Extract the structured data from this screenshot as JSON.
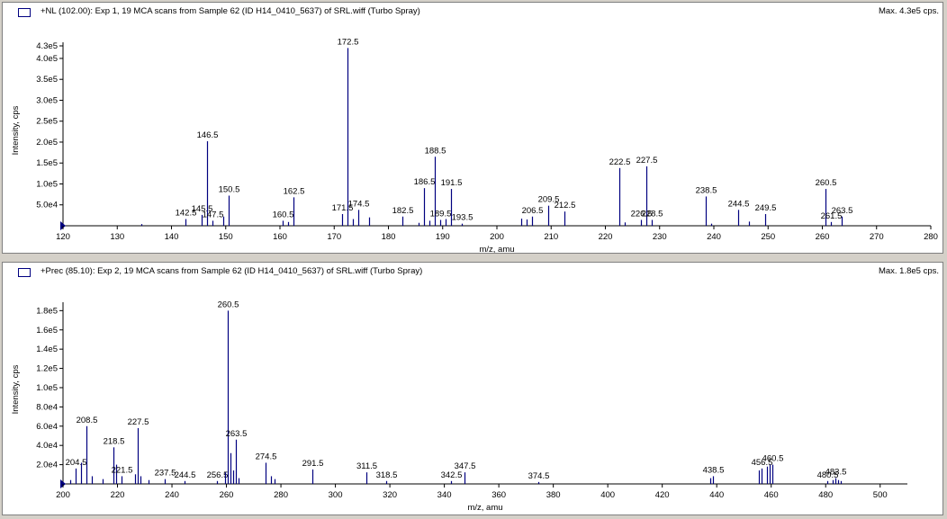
{
  "colors": {
    "series": "#000080",
    "axis": "#000000",
    "background": "#ffffff",
    "frame": "#d4d0c8"
  },
  "panels": [
    {
      "header": "+NL (102.00): Exp 1, 19 MCA scans from Sample 62 (ID H14_0410_5637) of SRL.wiff (Turbo Spray)",
      "max_label": "Max. 4.3e5 cps."
    },
    {
      "header": "+Prec (85.10): Exp 2, 19 MCA scans from Sample 62 (ID H14_0410_5637) of SRL.wiff (Turbo Spray)",
      "max_label": "Max. 1.8e5 cps."
    }
  ],
  "chart_data": [
    {
      "type": "bar",
      "xlabel": "m/z, amu",
      "ylabel": "Intensity, cps",
      "xlim": [
        120,
        280
      ],
      "ylim": [
        0,
        430000
      ],
      "x_ticks": [
        120,
        130,
        140,
        150,
        160,
        170,
        180,
        190,
        200,
        210,
        220,
        230,
        240,
        250,
        260,
        270,
        280
      ],
      "y_ticks": [
        {
          "value": 50000,
          "label": "5.0e4"
        },
        {
          "value": 100000,
          "label": "1.0e5"
        },
        {
          "value": 150000,
          "label": "1.5e5"
        },
        {
          "value": 200000,
          "label": "2.0e5"
        },
        {
          "value": 250000,
          "label": "2.5e5"
        },
        {
          "value": 300000,
          "label": "3.0e5"
        },
        {
          "value": 350000,
          "label": "3.5e5"
        },
        {
          "value": 400000,
          "label": "4.0e5"
        },
        {
          "value": 430000,
          "label": "4.3e5"
        }
      ],
      "peaks": [
        {
          "x": 134.5,
          "y": 4000
        },
        {
          "x": 142.5,
          "y": 16000,
          "label": "142.5"
        },
        {
          "x": 145.5,
          "y": 26000,
          "label": "145.5"
        },
        {
          "x": 146.5,
          "y": 202000,
          "label": "146.5"
        },
        {
          "x": 147.5,
          "y": 12000,
          "label": "147.5"
        },
        {
          "x": 149.5,
          "y": 22000
        },
        {
          "x": 150.5,
          "y": 72000,
          "label": "150.5"
        },
        {
          "x": 160.5,
          "y": 12000,
          "label": "160.5"
        },
        {
          "x": 161.5,
          "y": 9000
        },
        {
          "x": 162.5,
          "y": 68000,
          "label": "162.5"
        },
        {
          "x": 171.5,
          "y": 28000,
          "label": "171.5"
        },
        {
          "x": 172.5,
          "y": 425000,
          "label": "172.5"
        },
        {
          "x": 173.5,
          "y": 16000
        },
        {
          "x": 174.5,
          "y": 38000,
          "label": "174.5"
        },
        {
          "x": 176.5,
          "y": 20000
        },
        {
          "x": 182.5,
          "y": 22000,
          "label": "182.5"
        },
        {
          "x": 185.5,
          "y": 7000
        },
        {
          "x": 186.5,
          "y": 90000,
          "label": "186.5"
        },
        {
          "x": 187.5,
          "y": 12000
        },
        {
          "x": 188.5,
          "y": 165000,
          "label": "188.5"
        },
        {
          "x": 189.5,
          "y": 14000,
          "label": "189.5"
        },
        {
          "x": 190.5,
          "y": 16000
        },
        {
          "x": 191.5,
          "y": 88000,
          "label": "191.5"
        },
        {
          "x": 193.5,
          "y": 5000,
          "label": "193.5"
        },
        {
          "x": 204.5,
          "y": 17000
        },
        {
          "x": 205.5,
          "y": 15000
        },
        {
          "x": 206.5,
          "y": 22000,
          "label": "206.5"
        },
        {
          "x": 209.5,
          "y": 48000,
          "label": "209.5"
        },
        {
          "x": 212.5,
          "y": 34000,
          "label": "212.5"
        },
        {
          "x": 222.5,
          "y": 138000,
          "label": "222.5"
        },
        {
          "x": 223.5,
          "y": 8000
        },
        {
          "x": 226.5,
          "y": 14000,
          "label": "226.5"
        },
        {
          "x": 227.5,
          "y": 142000,
          "label": "227.5"
        },
        {
          "x": 228.5,
          "y": 14000,
          "label": "228.5"
        },
        {
          "x": 238.5,
          "y": 70000,
          "label": "238.5"
        },
        {
          "x": 239.5,
          "y": 5000
        },
        {
          "x": 244.5,
          "y": 38000,
          "label": "244.5"
        },
        {
          "x": 246.5,
          "y": 10000
        },
        {
          "x": 249.5,
          "y": 28000,
          "label": "249.5"
        },
        {
          "x": 260.5,
          "y": 88000,
          "label": "260.5"
        },
        {
          "x": 261.5,
          "y": 9000,
          "label": "261.5"
        },
        {
          "x": 263.5,
          "y": 22000,
          "label": "263.5"
        }
      ]
    },
    {
      "type": "bar",
      "xlabel": "m/z, amu",
      "ylabel": "Intensity, cps",
      "xlim": [
        200,
        510
      ],
      "ylim": [
        0,
        185000
      ],
      "x_ticks": [
        200,
        220,
        240,
        260,
        280,
        300,
        320,
        340,
        360,
        380,
        400,
        420,
        440,
        460,
        480,
        500
      ],
      "y_ticks": [
        {
          "value": 20000,
          "label": "2.0e4"
        },
        {
          "value": 40000,
          "label": "4.0e4"
        },
        {
          "value": 60000,
          "label": "6.0e4"
        },
        {
          "value": 80000,
          "label": "8.0e4"
        },
        {
          "value": 100000,
          "label": "1.0e5"
        },
        {
          "value": 120000,
          "label": "1.2e5"
        },
        {
          "value": 140000,
          "label": "1.4e5"
        },
        {
          "value": 160000,
          "label": "1.6e5"
        },
        {
          "value": 180000,
          "label": "1.8e5"
        }
      ],
      "peaks": [
        {
          "x": 202.5,
          "y": 4000
        },
        {
          "x": 204.5,
          "y": 16000,
          "label": "204.5"
        },
        {
          "x": 206.5,
          "y": 22000
        },
        {
          "x": 208.5,
          "y": 60000,
          "label": "208.5"
        },
        {
          "x": 210.5,
          "y": 8000
        },
        {
          "x": 214.5,
          "y": 5000
        },
        {
          "x": 218.5,
          "y": 38000,
          "label": "218.5"
        },
        {
          "x": 219.5,
          "y": 20000
        },
        {
          "x": 221.5,
          "y": 8000,
          "label": "221.5"
        },
        {
          "x": 226.5,
          "y": 10000
        },
        {
          "x": 227.5,
          "y": 58000,
          "label": "227.5"
        },
        {
          "x": 228.5,
          "y": 8000
        },
        {
          "x": 231.5,
          "y": 4000
        },
        {
          "x": 237.5,
          "y": 5000,
          "label": "237.5"
        },
        {
          "x": 244.5,
          "y": 3000,
          "label": "244.5"
        },
        {
          "x": 256.5,
          "y": 3000,
          "label": "256.5"
        },
        {
          "x": 259.5,
          "y": 12000
        },
        {
          "x": 260.5,
          "y": 180000,
          "label": "260.5"
        },
        {
          "x": 261.5,
          "y": 32000
        },
        {
          "x": 262.5,
          "y": 14000
        },
        {
          "x": 263.5,
          "y": 46000,
          "label": "263.5"
        },
        {
          "x": 264.5,
          "y": 6000
        },
        {
          "x": 274.5,
          "y": 22000,
          "label": "274.5"
        },
        {
          "x": 276.5,
          "y": 8000
        },
        {
          "x": 277.5,
          "y": 5000
        },
        {
          "x": 291.5,
          "y": 15000,
          "label": "291.5"
        },
        {
          "x": 311.5,
          "y": 12000,
          "label": "311.5"
        },
        {
          "x": 318.5,
          "y": 3000,
          "label": "318.5"
        },
        {
          "x": 342.5,
          "y": 3000,
          "label": "342.5"
        },
        {
          "x": 347.5,
          "y": 12000,
          "label": "347.5"
        },
        {
          "x": 374.5,
          "y": 2000,
          "label": "374.5"
        },
        {
          "x": 437.5,
          "y": 6000
        },
        {
          "x": 438.5,
          "y": 8000,
          "label": "438.5"
        },
        {
          "x": 455.5,
          "y": 14000
        },
        {
          "x": 456.5,
          "y": 16000,
          "label": "456.5"
        },
        {
          "x": 458.5,
          "y": 18000
        },
        {
          "x": 459.5,
          "y": 20000
        },
        {
          "x": 460.5,
          "y": 20000,
          "label": "460.5"
        },
        {
          "x": 480.5,
          "y": 3000,
          "label": "480.5"
        },
        {
          "x": 482.5,
          "y": 4000
        },
        {
          "x": 483.5,
          "y": 6000,
          "label": "483.5"
        },
        {
          "x": 484.5,
          "y": 4000
        },
        {
          "x": 485.5,
          "y": 3000
        }
      ]
    }
  ]
}
